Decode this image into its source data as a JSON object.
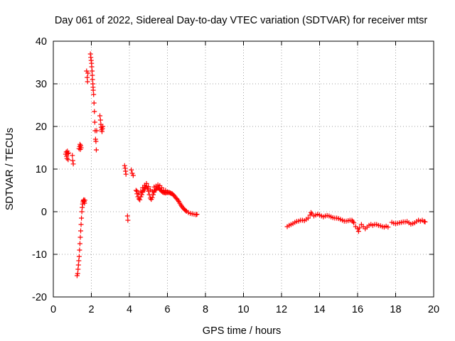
{
  "chart_data": {
    "type": "scatter",
    "title": "Day 061 of 2022, Sidereal Day-to-day VTEC variation (SDTVAR) for receiver mtsr",
    "xlabel": "GPS time / hours",
    "ylabel": "SDTVAR / TECUs",
    "xlim": [
      0,
      20
    ],
    "ylim": [
      -20,
      40
    ],
    "xticks": [
      0,
      2,
      4,
      6,
      8,
      10,
      12,
      14,
      16,
      18,
      20
    ],
    "yticks": [
      -20,
      -10,
      0,
      10,
      20,
      30,
      40
    ],
    "grid": true,
    "marker": "+",
    "series_color": "#ff0000",
    "series": [
      {
        "name": "SDTVAR",
        "points": [
          [
            0.65,
            13.5
          ],
          [
            0.68,
            14.0
          ],
          [
            0.7,
            13.0
          ],
          [
            0.72,
            12.5
          ],
          [
            0.74,
            14.2
          ],
          [
            0.76,
            13.6
          ],
          [
            0.78,
            12.2
          ],
          [
            0.8,
            13.8
          ],
          [
            1.0,
            13.2
          ],
          [
            1.02,
            12.0
          ],
          [
            1.05,
            11.2
          ],
          [
            1.25,
            -15.0
          ],
          [
            1.28,
            -14.5
          ],
          [
            1.3,
            -13.5
          ],
          [
            1.32,
            -12.5
          ],
          [
            1.34,
            -11.5
          ],
          [
            1.36,
            -10.5
          ],
          [
            1.38,
            -9.0
          ],
          [
            1.4,
            -7.5
          ],
          [
            1.42,
            -6.0
          ],
          [
            1.44,
            -4.5
          ],
          [
            1.46,
            -3.0
          ],
          [
            1.48,
            -1.5
          ],
          [
            1.5,
            0.0
          ],
          [
            1.52,
            1.0
          ],
          [
            1.54,
            1.8
          ],
          [
            1.56,
            2.3
          ],
          [
            1.58,
            2.6
          ],
          [
            1.6,
            2.8
          ],
          [
            1.62,
            2.4
          ],
          [
            1.64,
            2.0
          ],
          [
            1.66,
            2.7
          ],
          [
            1.35,
            14.8
          ],
          [
            1.38,
            15.3
          ],
          [
            1.4,
            15.8
          ],
          [
            1.42,
            14.6
          ],
          [
            1.44,
            15.5
          ],
          [
            1.46,
            15.0
          ],
          [
            1.75,
            33.0
          ],
          [
            1.78,
            31.5
          ],
          [
            1.8,
            30.5
          ],
          [
            1.82,
            32.5
          ],
          [
            1.95,
            37.0
          ],
          [
            1.97,
            36.2
          ],
          [
            1.99,
            35.5
          ],
          [
            2.01,
            34.8
          ],
          [
            2.02,
            34.0
          ],
          [
            2.04,
            33.0
          ],
          [
            2.05,
            32.0
          ],
          [
            2.06,
            31.0
          ],
          [
            2.08,
            30.0
          ],
          [
            2.09,
            29.2
          ],
          [
            2.1,
            28.5
          ],
          [
            2.12,
            27.5
          ],
          [
            2.14,
            25.5
          ],
          [
            2.16,
            23.5
          ],
          [
            2.18,
            21.0
          ],
          [
            2.2,
            19.0
          ],
          [
            2.22,
            17.0
          ],
          [
            2.24,
            16.5
          ],
          [
            2.26,
            14.5
          ],
          [
            2.28,
            19.0
          ],
          [
            2.45,
            22.5
          ],
          [
            2.48,
            21.5
          ],
          [
            2.5,
            20.5
          ],
          [
            2.52,
            19.8
          ],
          [
            2.54,
            19.2
          ],
          [
            2.56,
            18.8
          ],
          [
            2.58,
            19.5
          ],
          [
            2.6,
            20.0
          ],
          [
            3.75,
            10.8
          ],
          [
            3.78,
            10.2
          ],
          [
            3.8,
            9.5
          ],
          [
            3.82,
            8.8
          ],
          [
            3.9,
            -1.0
          ],
          [
            3.92,
            -2.0
          ],
          [
            4.1,
            9.8
          ],
          [
            4.15,
            9.0
          ],
          [
            4.2,
            8.5
          ],
          [
            4.35,
            5.0
          ],
          [
            4.4,
            4.2
          ],
          [
            4.45,
            3.5
          ],
          [
            4.5,
            3.0
          ],
          [
            4.55,
            2.8
          ],
          [
            4.6,
            3.5
          ],
          [
            4.65,
            4.0
          ],
          [
            4.7,
            4.6
          ],
          [
            4.75,
            5.0
          ],
          [
            4.8,
            5.3
          ],
          [
            4.85,
            5.8
          ],
          [
            4.9,
            6.0
          ],
          [
            4.95,
            5.5
          ],
          [
            5.0,
            4.8
          ],
          [
            5.05,
            4.0
          ],
          [
            5.1,
            3.2
          ],
          [
            5.15,
            2.9
          ],
          [
            5.2,
            3.3
          ],
          [
            5.25,
            4.0
          ],
          [
            5.3,
            4.6
          ],
          [
            5.35,
            5.0
          ],
          [
            5.4,
            5.2
          ],
          [
            5.45,
            5.5
          ],
          [
            5.5,
            5.6
          ],
          [
            5.55,
            5.5
          ],
          [
            5.6,
            5.2
          ],
          [
            5.65,
            5.0
          ],
          [
            5.7,
            4.8
          ],
          [
            5.75,
            4.6
          ],
          [
            5.8,
            4.5
          ],
          [
            5.85,
            4.5
          ],
          [
            5.9,
            4.4
          ],
          [
            5.95,
            4.5
          ],
          [
            6.0,
            4.6
          ],
          [
            6.05,
            4.5
          ],
          [
            6.1,
            4.5
          ],
          [
            6.15,
            4.4
          ],
          [
            6.2,
            4.3
          ],
          [
            6.25,
            4.2
          ],
          [
            6.3,
            4.0
          ],
          [
            6.35,
            3.8
          ],
          [
            6.4,
            3.5
          ],
          [
            6.45,
            3.2
          ],
          [
            6.5,
            3.0
          ],
          [
            6.55,
            2.7
          ],
          [
            6.6,
            2.4
          ],
          [
            6.65,
            2.0
          ],
          [
            6.7,
            1.6
          ],
          [
            6.75,
            1.3
          ],
          [
            6.8,
            1.0
          ],
          [
            6.85,
            0.7
          ],
          [
            6.9,
            0.5
          ],
          [
            6.95,
            0.3
          ],
          [
            7.0,
            0.1
          ],
          [
            7.1,
            -0.2
          ],
          [
            7.2,
            -0.4
          ],
          [
            7.3,
            -0.5
          ],
          [
            7.4,
            -0.6
          ],
          [
            7.5,
            -0.7
          ],
          [
            7.55,
            -0.6
          ],
          [
            4.4,
            4.8
          ],
          [
            4.5,
            4.4
          ],
          [
            4.6,
            4.8
          ],
          [
            4.7,
            5.6
          ],
          [
            4.8,
            6.2
          ],
          [
            4.9,
            6.6
          ],
          [
            5.0,
            5.9
          ],
          [
            5.1,
            5.1
          ],
          [
            5.2,
            4.8
          ],
          [
            5.3,
            5.8
          ],
          [
            5.4,
            6.0
          ],
          [
            5.5,
            6.3
          ],
          [
            5.6,
            6.1
          ],
          [
            5.7,
            5.6
          ],
          [
            5.8,
            5.0
          ],
          [
            5.9,
            5.0
          ],
          [
            12.3,
            -3.5
          ],
          [
            12.4,
            -3.2
          ],
          [
            12.5,
            -3.0
          ],
          [
            12.6,
            -2.8
          ],
          [
            12.7,
            -2.5
          ],
          [
            12.8,
            -2.3
          ],
          [
            12.9,
            -2.2
          ],
          [
            13.0,
            -2.0
          ],
          [
            13.1,
            -2.0
          ],
          [
            13.2,
            -2.1
          ],
          [
            13.3,
            -1.8
          ],
          [
            13.4,
            -1.5
          ],
          [
            13.5,
            -0.8
          ],
          [
            13.55,
            -0.2
          ],
          [
            13.6,
            -0.5
          ],
          [
            13.7,
            -1.0
          ],
          [
            13.8,
            -0.8
          ],
          [
            13.9,
            -0.6
          ],
          [
            14.0,
            -0.8
          ],
          [
            14.1,
            -1.0
          ],
          [
            14.2,
            -1.2
          ],
          [
            14.3,
            -1.0
          ],
          [
            14.4,
            -0.9
          ],
          [
            14.5,
            -1.0
          ],
          [
            14.6,
            -1.2
          ],
          [
            14.7,
            -1.4
          ],
          [
            14.8,
            -1.5
          ],
          [
            14.9,
            -1.5
          ],
          [
            15.0,
            -1.6
          ],
          [
            15.1,
            -1.8
          ],
          [
            15.2,
            -2.0
          ],
          [
            15.3,
            -2.2
          ],
          [
            15.4,
            -2.2
          ],
          [
            15.5,
            -2.1
          ],
          [
            15.6,
            -2.0
          ],
          [
            15.7,
            -2.0
          ],
          [
            15.75,
            -2.3
          ],
          [
            15.8,
            -2.6
          ],
          [
            15.9,
            -3.5
          ],
          [
            16.0,
            -4.0
          ],
          [
            16.05,
            -4.6
          ],
          [
            16.1,
            -3.8
          ],
          [
            16.2,
            -3.0
          ],
          [
            16.3,
            -3.5
          ],
          [
            16.4,
            -4.0
          ],
          [
            16.5,
            -3.6
          ],
          [
            16.6,
            -3.2
          ],
          [
            16.7,
            -3.0
          ],
          [
            16.8,
            -3.2
          ],
          [
            16.9,
            -3.0
          ],
          [
            17.0,
            -3.0
          ],
          [
            17.1,
            -3.2
          ],
          [
            17.2,
            -3.3
          ],
          [
            17.3,
            -3.5
          ],
          [
            17.4,
            -3.6
          ],
          [
            17.5,
            -3.4
          ],
          [
            17.6,
            -3.6
          ],
          [
            17.8,
            -2.5
          ],
          [
            17.9,
            -2.7
          ],
          [
            18.0,
            -2.8
          ],
          [
            18.1,
            -2.7
          ],
          [
            18.2,
            -2.6
          ],
          [
            18.3,
            -2.5
          ],
          [
            18.4,
            -2.4
          ],
          [
            18.5,
            -2.4
          ],
          [
            18.6,
            -2.3
          ],
          [
            18.7,
            -2.6
          ],
          [
            18.8,
            -2.9
          ],
          [
            18.9,
            -2.8
          ],
          [
            19.0,
            -2.6
          ],
          [
            19.1,
            -2.3
          ],
          [
            19.2,
            -2.0
          ],
          [
            19.3,
            -2.2
          ],
          [
            19.4,
            -2.0
          ],
          [
            19.5,
            -2.3
          ],
          [
            19.55,
            -2.4
          ]
        ]
      }
    ]
  }
}
